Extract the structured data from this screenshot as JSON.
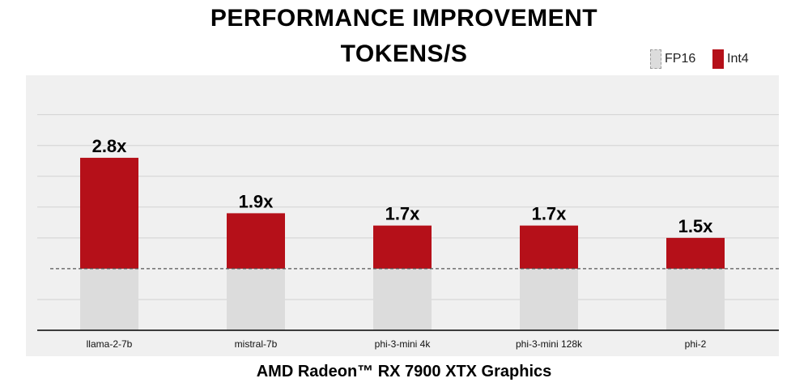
{
  "title_line1": "PERFORMANCE IMPROVEMENT",
  "title_line2": "TOKENS/S",
  "footer": "AMD Radeon™ RX 7900 XTX Graphics",
  "legend": [
    {
      "name": "FP16",
      "color": "#dcdcdc"
    },
    {
      "name": "Int4",
      "color": "#b51019"
    }
  ],
  "chart_data": {
    "type": "bar",
    "title": "PERFORMANCE IMPROVEMENT TOKENS/S",
    "xlabel": "",
    "ylabel": "",
    "categories": [
      "llama-2-7b",
      "mistral-7b",
      "phi-3-mini 4k",
      "phi-3-mini 128k",
      "phi-2"
    ],
    "series": [
      {
        "name": "FP16",
        "values": [
          1.0,
          1.0,
          1.0,
          1.0,
          1.0
        ],
        "color": "#dcdcdc"
      },
      {
        "name": "Int4",
        "values": [
          2.8,
          1.9,
          1.7,
          1.7,
          1.5
        ],
        "color": "#b51019"
      }
    ],
    "data_labels": [
      "2.8x",
      "1.9x",
      "1.7x",
      "1.7x",
      "1.5x"
    ],
    "ylim": [
      0,
      3
    ],
    "grid": true,
    "legend_position": "top-right",
    "baseline": 1.0
  }
}
